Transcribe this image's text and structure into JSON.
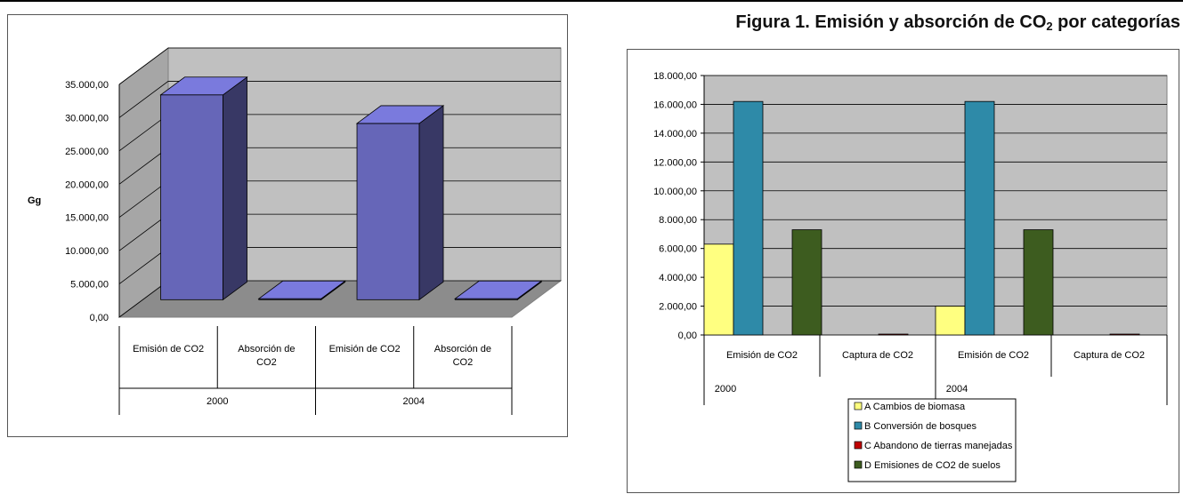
{
  "figure_title": {
    "main": "Figura 1. Emisión y absorción de CO",
    "sub": "2",
    "tail": " por categorías"
  },
  "chart_data": [
    {
      "type": "bar",
      "style": "3d-column",
      "ylabel": "Gg",
      "ylim": [
        0,
        35000
      ],
      "yticks": [
        "0,00",
        "5.000,00",
        "10.000,00",
        "15.000,00",
        "20.000,00",
        "25.000,00",
        "30.000,00",
        "35.000,00"
      ],
      "categories": [
        [
          "Emisión de CO2"
        ],
        [
          "Absorción de",
          "CO2"
        ],
        [
          "Emisión de CO2"
        ],
        [
          "Absorción de",
          "CO2"
        ]
      ],
      "groups": [
        "2000",
        "2004"
      ],
      "values": [
        30800,
        150,
        26500,
        150
      ],
      "bar_color": "#6666b8",
      "grid": true
    },
    {
      "type": "bar",
      "ylim": [
        0,
        18000
      ],
      "yticks": [
        "0,00",
        "2.000,00",
        "4.000,00",
        "6.000,00",
        "8.000,00",
        "10.000,00",
        "12.000,00",
        "14.000,00",
        "16.000,00",
        "18.000,00"
      ],
      "categories": [
        "Emisión de CO2",
        "Captura de CO2",
        "Emisión de CO2",
        "Captura de CO2"
      ],
      "groups": [
        "2000",
        "2004"
      ],
      "series": [
        {
          "name": "A Cambios de biomasa",
          "color": "#ffff80",
          "values": [
            6300,
            0,
            2000,
            0
          ]
        },
        {
          "name": "B Conversión de bosques",
          "color": "#2e8aa8",
          "values": [
            16200,
            0,
            16200,
            0
          ]
        },
        {
          "name": "C Abandono de tierras manejadas",
          "color": "#c00000",
          "values": [
            0,
            60,
            0,
            60
          ]
        },
        {
          "name": "D Emisiones de CO2 de suelos",
          "color": "#3d5c1f",
          "values": [
            7300,
            0,
            7300,
            0
          ]
        }
      ],
      "legend": "bottom",
      "grid": true
    }
  ]
}
